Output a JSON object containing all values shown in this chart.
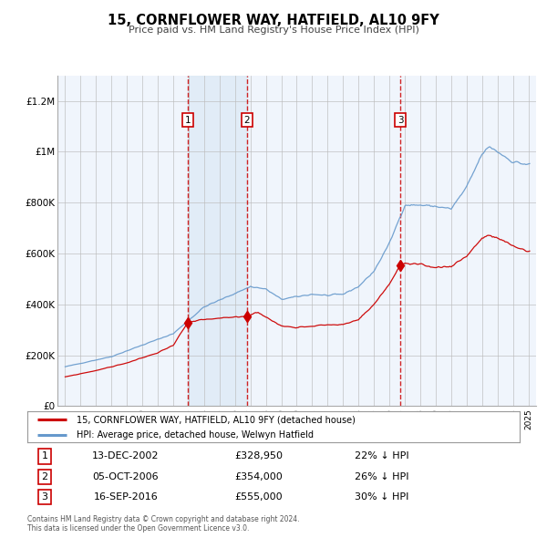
{
  "title": "15, CORNFLOWER WAY, HATFIELD, AL10 9FY",
  "subtitle": "Price paid vs. HM Land Registry's House Price Index (HPI)",
  "red_label": "15, CORNFLOWER WAY, HATFIELD, AL10 9FY (detached house)",
  "blue_label": "HPI: Average price, detached house, Welwyn Hatfield",
  "footer1": "Contains HM Land Registry data © Crown copyright and database right 2024.",
  "footer2": "This data is licensed under the Open Government Licence v3.0.",
  "transactions": [
    {
      "num": 1,
      "date": "13-DEC-2002",
      "price": "£328,950",
      "hpi": "22% ↓ HPI",
      "x_year": 2002.95,
      "y_val": 328950
    },
    {
      "num": 2,
      "date": "05-OCT-2006",
      "price": "£354,000",
      "hpi": "26% ↓ HPI",
      "x_year": 2006.76,
      "y_val": 354000
    },
    {
      "num": 3,
      "date": "16-SEP-2016",
      "price": "£555,000",
      "hpi": "30% ↓ HPI",
      "x_year": 2016.71,
      "y_val": 555000
    }
  ],
  "vline_color": "#cc0000",
  "shade_color": "#dce9f5",
  "red_line_color": "#cc0000",
  "blue_line_color": "#6699cc",
  "background_color": "#f0f5fc",
  "grid_color": "#bbbbbb",
  "ylim": [
    0,
    1300000
  ],
  "xlim_start": 1994.5,
  "xlim_end": 2025.5,
  "yticks": [
    0,
    200000,
    400000,
    600000,
    800000,
    1000000,
    1200000
  ],
  "ytick_labels": [
    "£0",
    "£200K",
    "£400K",
    "£600K",
    "£800K",
    "£1M",
    "£1.2M"
  ]
}
